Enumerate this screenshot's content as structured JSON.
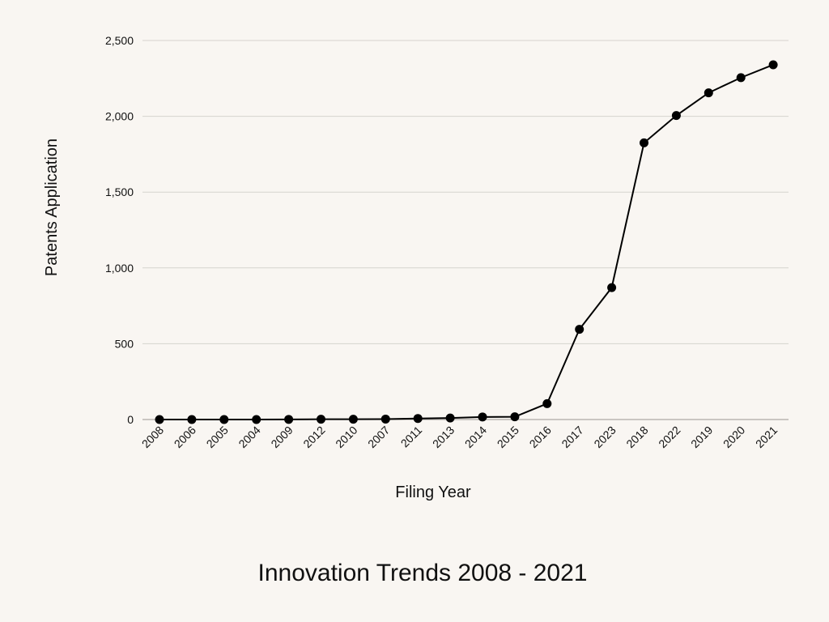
{
  "chart_data": {
    "type": "line",
    "title": "Innovation Trends 2008 - 2021",
    "xlabel": "Filing Year",
    "ylabel": "Patents Application",
    "categories": [
      "2008",
      "2006",
      "2005",
      "2004",
      "2009",
      "2012",
      "2010",
      "2007",
      "2011",
      "2013",
      "2014",
      "2015",
      "2016",
      "2017",
      "2023",
      "2018",
      "2022",
      "2019",
      "2020",
      "2021"
    ],
    "series": [
      {
        "values": [
          0,
          0,
          0,
          0,
          1,
          2,
          2,
          3,
          7,
          10,
          17,
          18,
          105,
          595,
          870,
          1825,
          2005,
          2155,
          2255,
          2340
        ]
      }
    ],
    "ylim": [
      0,
      2500
    ],
    "yticks": [
      0,
      500,
      1000,
      1500,
      2000,
      2500
    ],
    "ytick_labels": [
      "0",
      "500",
      "1,000",
      "1,500",
      "2,000",
      "2,500"
    ],
    "grid": true,
    "legend": "none",
    "colors": {
      "line": "#000000",
      "grid": "#d6d3ce",
      "background": "#f9f6f2"
    }
  }
}
